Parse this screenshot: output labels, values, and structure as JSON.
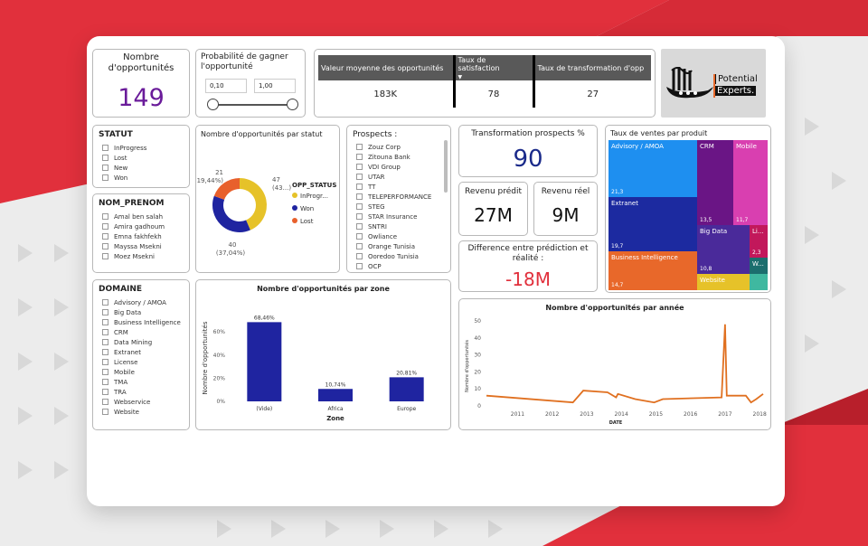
{
  "colors": {
    "accent_red": "#e1303c",
    "kpi_blue": "#1a2a8a",
    "kpi_purple": "#6a1b9a",
    "bar_blue": "#1f24a0",
    "line_orange": "#e07020",
    "donut_yellow": "#e6c229",
    "donut_blue": "#1f24a0",
    "donut_orange": "#e8602c"
  },
  "kpi_count": {
    "title": "Nombre d'opportunités",
    "value": "149"
  },
  "prob_slicer": {
    "title": "Probabilité de gagner l'opportunité",
    "min": "0,10",
    "max": "1,00"
  },
  "values_table": {
    "headers": [
      "Valeur moyenne des opportunités",
      "Taux de satisfaction",
      "Taux de transformation d'opp"
    ],
    "values": [
      "183K",
      "78",
      "27"
    ]
  },
  "logo": {
    "line1": "Potential",
    "line2": "Experts."
  },
  "statut": {
    "title": "STATUT",
    "items": [
      "InProgress",
      "Lost",
      "New",
      "Won"
    ]
  },
  "nom_prenom": {
    "title": "NOM_PRENOM",
    "items": [
      "Amal ben salah",
      "Amira gadhoum",
      "Emna fakhfekh",
      "Mayssa Msekni",
      "Moez Msekni"
    ]
  },
  "domaine": {
    "title": "DOMAINE",
    "items": [
      "Advisory / AMOA",
      "Big Data",
      "Business Intelligence",
      "CRM",
      "Data Mining",
      "Extranet",
      "License",
      "Mobile",
      "TMA",
      "TRA",
      "Webservice",
      "Website"
    ]
  },
  "prospects": {
    "title": "Prospects :",
    "items": [
      "Zouz Corp",
      "Zitouna Bank",
      "VDI Group",
      "UTAR",
      "TT",
      "TELEPERFORMANCE",
      "STEG",
      "STAR Insurance",
      "SNTRI",
      "Owliance",
      "Orange Tunisia",
      "Ooredoo Tunisia",
      "OCP"
    ]
  },
  "donut": {
    "title": "Nombre d'opportunités par statut",
    "legend_title": "OPP_STATUS",
    "slices": [
      {
        "name": "InProgr...",
        "value": 47,
        "label": "47",
        "pct_label": "(43...)"
      },
      {
        "name": "Won",
        "value": 40,
        "label": "40",
        "pct_label": "(37,04%)"
      },
      {
        "name": "Lost",
        "value": 21,
        "label": "21",
        "pct_label": "(19,44%)"
      }
    ]
  },
  "kpi_transfo": {
    "title": "Transformation prospects %",
    "value": "90"
  },
  "kpi_predit": {
    "title": "Revenu prédit",
    "value": "27M"
  },
  "kpi_reel": {
    "title": "Revenu réel",
    "value": "9M"
  },
  "kpi_diff": {
    "title": "Difference entre prédiction et réalité :",
    "value": "-18M"
  },
  "treemap": {
    "title": "Taux de ventes par produit",
    "cells": [
      {
        "name": "Advisory / AMOA",
        "value": "21,3",
        "color": "#1e8ff0"
      },
      {
        "name": "Extranet",
        "value": "19,7",
        "color": "#1c2aa0"
      },
      {
        "name": "Business Intelligence",
        "value": "14,7",
        "color": "#e8682a"
      },
      {
        "name": "CRM",
        "value": "13,5",
        "color": "#6a1585"
      },
      {
        "name": "Mobile",
        "value": "11,7",
        "color": "#d93fb0"
      },
      {
        "name": "Big Data",
        "value": "10,8",
        "color": "#4a2a9a"
      },
      {
        "name": "Li...",
        "value": "2,3",
        "color": "#c2185b"
      },
      {
        "name": "Website",
        "value": "",
        "color": "#e6c229"
      },
      {
        "name": "W...",
        "value": "",
        "color": "#1b6e6e"
      }
    ]
  },
  "chart_data": [
    {
      "type": "bar",
      "title": "Nombre d'opportunités par zone",
      "xlabel": "Zone",
      "ylabel": "Nombre d'opportunités",
      "categories": [
        "(Vide)",
        "Africa",
        "Europe"
      ],
      "values": [
        68.46,
        10.74,
        20.81
      ],
      "data_labels": [
        "68,46%",
        "10,74%",
        "20,81%"
      ],
      "yticks": [
        "0%",
        "20%",
        "40%",
        "60%"
      ],
      "ylim": [
        0,
        75
      ]
    },
    {
      "type": "line",
      "title": "Nombre d'opportunités par année",
      "xlabel": "DATE",
      "ylabel": "Nombre d'opportunités",
      "xticks": [
        "2011",
        "2012",
        "2013",
        "2014",
        "2015",
        "2016",
        "2017",
        "2018"
      ],
      "yticks": [
        "0",
        "10",
        "20",
        "30",
        "40",
        "50"
      ],
      "ylim": [
        0,
        50
      ],
      "xlim": [
        2010.1,
        2018.1
      ],
      "x": [
        2010.1,
        2012.6,
        2012.9,
        2013.6,
        2013.85,
        2013.9,
        2014.4,
        2014.95,
        2015.2,
        2016.9,
        2017.0,
        2017.05,
        2017.12,
        2017.2,
        2017.6,
        2017.75,
        2017.9,
        2018.1
      ],
      "y": [
        6,
        2,
        9,
        8,
        5,
        7,
        4,
        2,
        4,
        5,
        48,
        6,
        6,
        6,
        6,
        2,
        4,
        7
      ]
    }
  ]
}
